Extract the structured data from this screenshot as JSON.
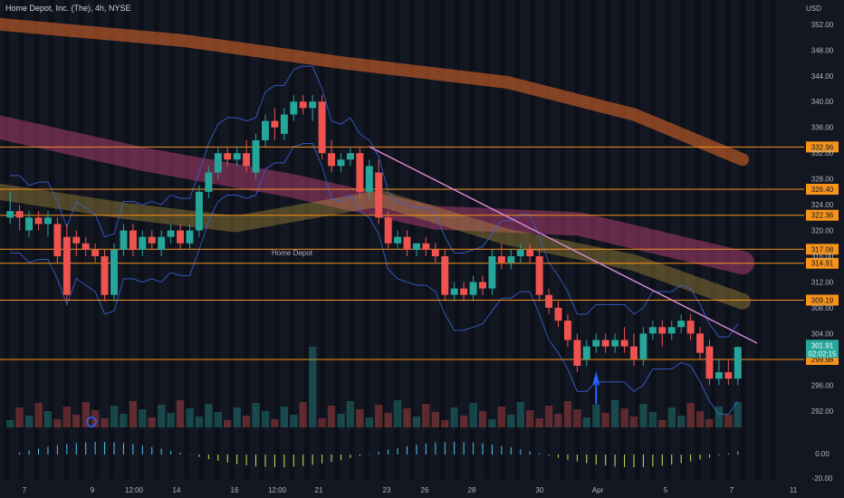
{
  "header": {
    "symbol_title": "Home Depot, Inc. (The), 4h, NYSE",
    "currency": "USD",
    "watermark": "Home Depot"
  },
  "colors": {
    "bg": "#131722",
    "up": "#26a69a",
    "down": "#ef5350",
    "level": "#f7931a",
    "trend": "#d88bd8",
    "bb": "#3a62d6"
  },
  "price_axis": {
    "ticks": [
      "352.00",
      "348.00",
      "344.00",
      "340.00",
      "336.00",
      "332.00",
      "328.00",
      "324.00",
      "320.00",
      "316.00",
      "312.00",
      "308.00",
      "304.00",
      "296.00",
      "292.00"
    ],
    "current_price": "301.91",
    "countdown": "02:02:15"
  },
  "osc_axis": {
    "ticks": [
      "0.00",
      "-20.00"
    ]
  },
  "time_axis": {
    "labels": [
      "7",
      "9",
      "12:00",
      "14",
      "16",
      "12:00",
      "21",
      "23",
      "26",
      "28",
      "30",
      "Apr",
      "5",
      "7",
      "11"
    ]
  },
  "chart_data": {
    "type": "candlestick",
    "interval": "4h",
    "ylim": [
      290,
      354
    ],
    "levels": [
      332.96,
      326.4,
      322.36,
      317.08,
      314.91,
      309.19,
      299.98
    ],
    "candles": [
      {
        "o": 322,
        "h": 326,
        "c": 323,
        "l": 321
      },
      {
        "o": 323,
        "h": 324,
        "c": 322,
        "l": 320
      },
      {
        "o": 320,
        "h": 323,
        "c": 322,
        "l": 319
      },
      {
        "o": 322,
        "h": 323,
        "c": 321,
        "l": 320
      },
      {
        "o": 321,
        "h": 323,
        "c": 322,
        "l": 319
      },
      {
        "o": 321,
        "h": 322,
        "c": 316,
        "l": 315
      },
      {
        "o": 319,
        "h": 321,
        "c": 310,
        "l": 309
      },
      {
        "o": 319,
        "h": 320,
        "c": 318,
        "l": 316
      },
      {
        "o": 318,
        "h": 319,
        "c": 317,
        "l": 316
      },
      {
        "o": 317,
        "h": 318,
        "c": 316,
        "l": 315
      },
      {
        "o": 316,
        "h": 317,
        "c": 310,
        "l": 309
      },
      {
        "o": 310,
        "h": 318,
        "c": 317,
        "l": 309
      },
      {
        "o": 317,
        "h": 321,
        "c": 320,
        "l": 316
      },
      {
        "o": 320,
        "h": 321,
        "c": 317,
        "l": 316
      },
      {
        "o": 317,
        "h": 320,
        "c": 319,
        "l": 316
      },
      {
        "o": 319,
        "h": 320,
        "c": 318,
        "l": 317
      },
      {
        "o": 317,
        "h": 320,
        "c": 319,
        "l": 316
      },
      {
        "o": 319,
        "h": 321,
        "c": 320,
        "l": 318
      },
      {
        "o": 320,
        "h": 321,
        "c": 318,
        "l": 317
      },
      {
        "o": 318,
        "h": 321,
        "c": 320,
        "l": 317
      },
      {
        "o": 320,
        "h": 327,
        "c": 326,
        "l": 319
      },
      {
        "o": 326,
        "h": 330,
        "c": 329,
        "l": 325
      },
      {
        "o": 329,
        "h": 333,
        "c": 332,
        "l": 328
      },
      {
        "o": 332,
        "h": 333,
        "c": 331,
        "l": 330
      },
      {
        "o": 331,
        "h": 333,
        "c": 332,
        "l": 330
      },
      {
        "o": 332,
        "h": 334,
        "c": 330,
        "l": 329
      },
      {
        "o": 329,
        "h": 335,
        "c": 334,
        "l": 328
      },
      {
        "o": 334,
        "h": 338,
        "c": 337,
        "l": 333
      },
      {
        "o": 337,
        "h": 339,
        "c": 336,
        "l": 334
      },
      {
        "o": 335,
        "h": 339,
        "c": 338,
        "l": 334
      },
      {
        "o": 338,
        "h": 341,
        "c": 340,
        "l": 337
      },
      {
        "o": 340,
        "h": 341,
        "c": 339,
        "l": 338
      },
      {
        "o": 339,
        "h": 341,
        "c": 340,
        "l": 337
      },
      {
        "o": 340,
        "h": 341,
        "c": 332,
        "l": 331
      },
      {
        "o": 332,
        "h": 334,
        "c": 330,
        "l": 329
      },
      {
        "o": 330,
        "h": 332,
        "c": 331,
        "l": 329
      },
      {
        "o": 331,
        "h": 333,
        "c": 332,
        "l": 330
      },
      {
        "o": 332,
        "h": 333,
        "c": 326,
        "l": 325
      },
      {
        "o": 326,
        "h": 331,
        "c": 330,
        "l": 325
      },
      {
        "o": 329,
        "h": 331,
        "c": 322,
        "l": 321
      },
      {
        "o": 322,
        "h": 323,
        "c": 318,
        "l": 317
      },
      {
        "o": 318,
        "h": 320,
        "c": 319,
        "l": 317
      },
      {
        "o": 319,
        "h": 320,
        "c": 317,
        "l": 316
      },
      {
        "o": 317,
        "h": 318,
        "c": 318,
        "l": 316
      },
      {
        "o": 318,
        "h": 319,
        "c": 317,
        "l": 316
      },
      {
        "o": 317,
        "h": 318,
        "c": 316,
        "l": 315
      },
      {
        "o": 316,
        "h": 317,
        "c": 310,
        "l": 309
      },
      {
        "o": 310,
        "h": 312,
        "c": 311,
        "l": 309
      },
      {
        "o": 311,
        "h": 312,
        "c": 310,
        "l": 309
      },
      {
        "o": 310,
        "h": 313,
        "c": 312,
        "l": 309
      },
      {
        "o": 312,
        "h": 313,
        "c": 311,
        "l": 310
      },
      {
        "o": 311,
        "h": 317,
        "c": 316,
        "l": 310
      },
      {
        "o": 316,
        "h": 318,
        "c": 315,
        "l": 314
      },
      {
        "o": 315,
        "h": 317,
        "c": 316,
        "l": 314
      },
      {
        "o": 316,
        "h": 318,
        "c": 317,
        "l": 315
      },
      {
        "o": 317,
        "h": 318,
        "c": 316,
        "l": 315
      },
      {
        "o": 316,
        "h": 317,
        "c": 310,
        "l": 309
      },
      {
        "o": 310,
        "h": 311,
        "c": 308,
        "l": 307
      },
      {
        "o": 308,
        "h": 309,
        "c": 306,
        "l": 305
      },
      {
        "o": 306,
        "h": 307,
        "c": 303,
        "l": 302
      },
      {
        "o": 303,
        "h": 304,
        "c": 299,
        "l": 298
      },
      {
        "o": 300,
        "h": 303,
        "c": 302,
        "l": 299
      },
      {
        "o": 302,
        "h": 304,
        "c": 303,
        "l": 301
      },
      {
        "o": 303,
        "h": 304,
        "c": 302,
        "l": 301
      },
      {
        "o": 302,
        "h": 304,
        "c": 303,
        "l": 301
      },
      {
        "o": 303,
        "h": 305,
        "c": 302,
        "l": 301
      },
      {
        "o": 302,
        "h": 304,
        "c": 300,
        "l": 299
      },
      {
        "o": 300,
        "h": 305,
        "c": 304,
        "l": 299
      },
      {
        "o": 304,
        "h": 306,
        "c": 305,
        "l": 303
      },
      {
        "o": 305,
        "h": 306,
        "c": 304,
        "l": 302
      },
      {
        "o": 304,
        "h": 306,
        "c": 305,
        "l": 303
      },
      {
        "o": 305,
        "h": 307,
        "c": 306,
        "l": 304
      },
      {
        "o": 306,
        "h": 307,
        "c": 304,
        "l": 303
      },
      {
        "o": 304,
        "h": 305,
        "c": 301,
        "l": 300
      },
      {
        "o": 302,
        "h": 303,
        "c": 297,
        "l": 296
      },
      {
        "o": 297,
        "h": 300,
        "c": 298,
        "l": 296
      },
      {
        "o": 298,
        "h": 300,
        "c": 297,
        "l": 296
      },
      {
        "o": 297,
        "h": 302,
        "c": 301.91,
        "l": 296
      }
    ]
  }
}
